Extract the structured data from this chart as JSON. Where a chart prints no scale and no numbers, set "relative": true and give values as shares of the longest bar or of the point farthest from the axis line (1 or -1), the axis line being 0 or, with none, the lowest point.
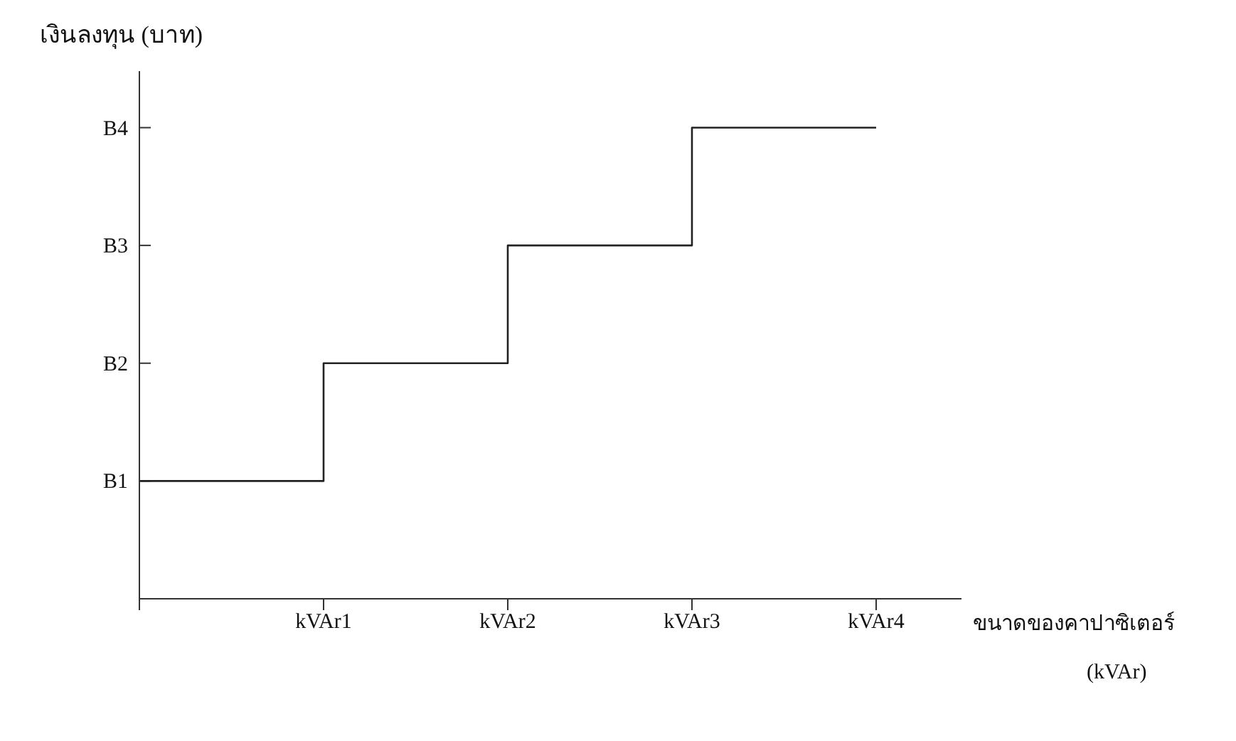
{
  "chart_data": {
    "type": "step",
    "xlabel": "ขนาดของคาปาซิเตอร์ (kVAr)",
    "ylabel": "เงินลงทุน (บาท)",
    "categories": [
      null,
      "kVAr1",
      "kVAr2",
      "kVAr3",
      "kVAr4"
    ],
    "series": [
      {
        "color": "#222222",
        "values": [
          0.25,
          0.5,
          0.75,
          1,
          1
        ]
      }
    ],
    "relative": true,
    "annotations": [
      "B1",
      "B2",
      "B3",
      "B4"
    ],
    "grid": false,
    "legend": false,
    "marker": "none",
    "line_style": "solid"
  }
}
